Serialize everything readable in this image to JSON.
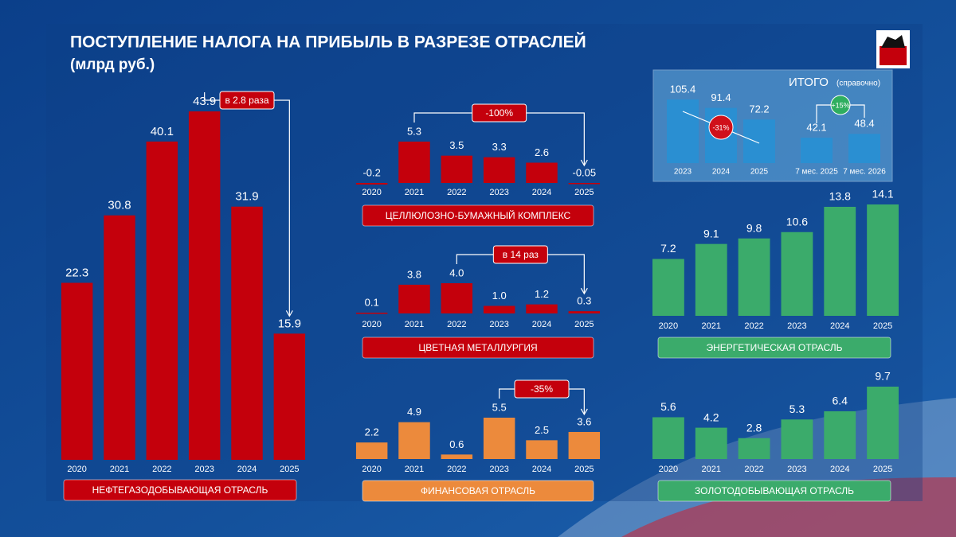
{
  "title": "ПОСТУПЛЕНИЕ НАЛОГА НА ПРИБЫЛЬ В РАЗРЕЗЕ ОТРАСЛЕЙ",
  "subtitle": "(млрд руб.)",
  "chart_data": [
    {
      "type": "bar",
      "label": "НЕФТЕГАЗОДОБЫВАЮЩАЯ ОТРАСЛЬ",
      "annotation": "в 2.8 раза",
      "categories": [
        "2020",
        "2021",
        "2022",
        "2023",
        "2024",
        "2025"
      ],
      "values": [
        22.3,
        30.8,
        40.1,
        43.9,
        31.9,
        15.9
      ],
      "color": "#c4000c"
    },
    {
      "type": "bar",
      "label": "ЦЕЛЛЮЛОЗНО-БУМАЖНЫЙ КОМПЛЕКС",
      "annotation": "-100%",
      "categories": [
        "2020",
        "2021",
        "2022",
        "2023",
        "2024",
        "2025"
      ],
      "values": [
        -0.2,
        5.3,
        3.5,
        3.3,
        2.6,
        -0.05
      ],
      "color": "#c4000c"
    },
    {
      "type": "bar",
      "label": "ЦВЕТНАЯ МЕТАЛЛУРГИЯ",
      "annotation": "в 14 раз",
      "categories": [
        "2020",
        "2021",
        "2022",
        "2023",
        "2024",
        "2025"
      ],
      "values": [
        0.1,
        3.8,
        4.0,
        1.0,
        1.2,
        0.3
      ],
      "value_labels": [
        "0.1",
        "3.8",
        "4.0",
        "1.0",
        "1.2",
        "0.3"
      ],
      "color": "#c4000c"
    },
    {
      "type": "bar",
      "label": "ФИНАНСОВАЯ ОТРАСЛЬ",
      "annotation": "-35%",
      "categories": [
        "2020",
        "2021",
        "2022",
        "2023",
        "2024",
        "2025"
      ],
      "values": [
        2.2,
        4.9,
        0.6,
        5.5,
        2.5,
        3.6
      ],
      "color": "#ec8a3c"
    },
    {
      "type": "bar",
      "label": "ЭНЕРГЕТИЧЕСКАЯ ОТРАСЛЬ",
      "categories": [
        "2020",
        "2021",
        "2022",
        "2023",
        "2024",
        "2025"
      ],
      "values": [
        7.2,
        9.1,
        9.8,
        10.6,
        13.8,
        14.1
      ],
      "color": "#3bab6b"
    },
    {
      "type": "bar",
      "label": "ЗОЛОТОДОБЫВАЮЩАЯ ОТРАСЛЬ",
      "categories": [
        "2020",
        "2021",
        "2022",
        "2023",
        "2024",
        "2025"
      ],
      "values": [
        5.6,
        4.2,
        2.8,
        5.3,
        6.4,
        9.7
      ],
      "color": "#3bab6b"
    },
    {
      "type": "bar",
      "title": "ИТОГО",
      "subtitle": "(справочно)",
      "annotations": [
        "-31%",
        "+15%"
      ],
      "categories": [
        "2023",
        "2024",
        "2025",
        "7 мес. 2025",
        "7 мес. 2026"
      ],
      "values": [
        105.4,
        91.4,
        72.2,
        42.1,
        48.4
      ],
      "color": "#2a8fd2"
    }
  ]
}
